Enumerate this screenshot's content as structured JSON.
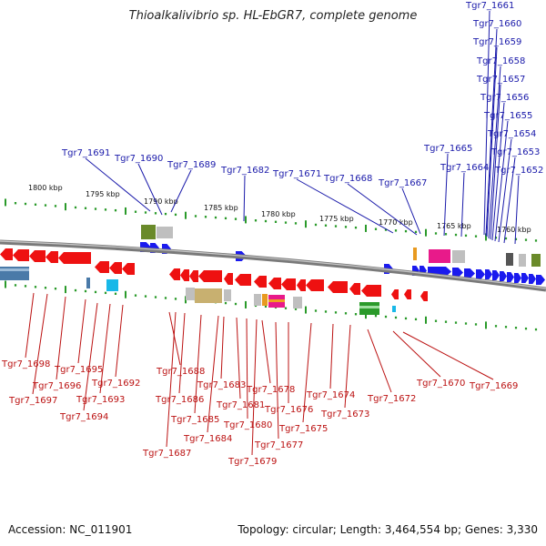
{
  "title": "Thioalkalivibrio sp. HL-EbGR7, complete genome",
  "accession": "Accession: NC_011901",
  "summary": "Topology: circular; Length: 3,464,554 bp; Genes: 3,330",
  "colors": {
    "forward": "#1a1aee",
    "reverse": "#ee1111",
    "blue_label": "#1a1aaa",
    "red_label": "#bb1111",
    "tick": "#2a9a2a",
    "backbone": "#7a7a7a"
  },
  "ruler_labels": [
    "1800 kbp",
    "1795 kbp",
    "1790 kbp",
    "1785 kbp",
    "1780 kbp",
    "1775 kbp",
    "1770 kbp",
    "1765 kbp",
    "1760 kbp"
  ],
  "forward_labels": [
    "Tgr7_1661",
    "Tgr7_1660",
    "Tgr7_1659",
    "Tgr7_1658",
    "Tgr7_1657",
    "Tgr7_1656",
    "Tgr7_1655",
    "Tgr7_1654",
    "Tgr7_1653",
    "Tgr7_1652",
    "Tgr7_1691",
    "Tgr7_1690",
    "Tgr7_1689",
    "Tgr7_1682",
    "Tgr7_1671",
    "Tgr7_1668",
    "Tgr7_1667",
    "Tgr7_1665",
    "Tgr7_1664"
  ],
  "reverse_labels": [
    "Tgr7_1698",
    "Tgr7_1697",
    "Tgr7_1696",
    "Tgr7_1695",
    "Tgr7_1694",
    "Tgr7_1693",
    "Tgr7_1692",
    "Tgr7_1688",
    "Tgr7_1687",
    "Tgr7_1686",
    "Tgr7_1685",
    "Tgr7_1684",
    "Tgr7_1683",
    "Tgr7_1681",
    "Tgr7_1680",
    "Tgr7_1679",
    "Tgr7_1678",
    "Tgr7_1677",
    "Tgr7_1676",
    "Tgr7_1675",
    "Tgr7_1674",
    "Tgr7_1673",
    "Tgr7_1672",
    "Tgr7_1670",
    "Tgr7_1669"
  ]
}
